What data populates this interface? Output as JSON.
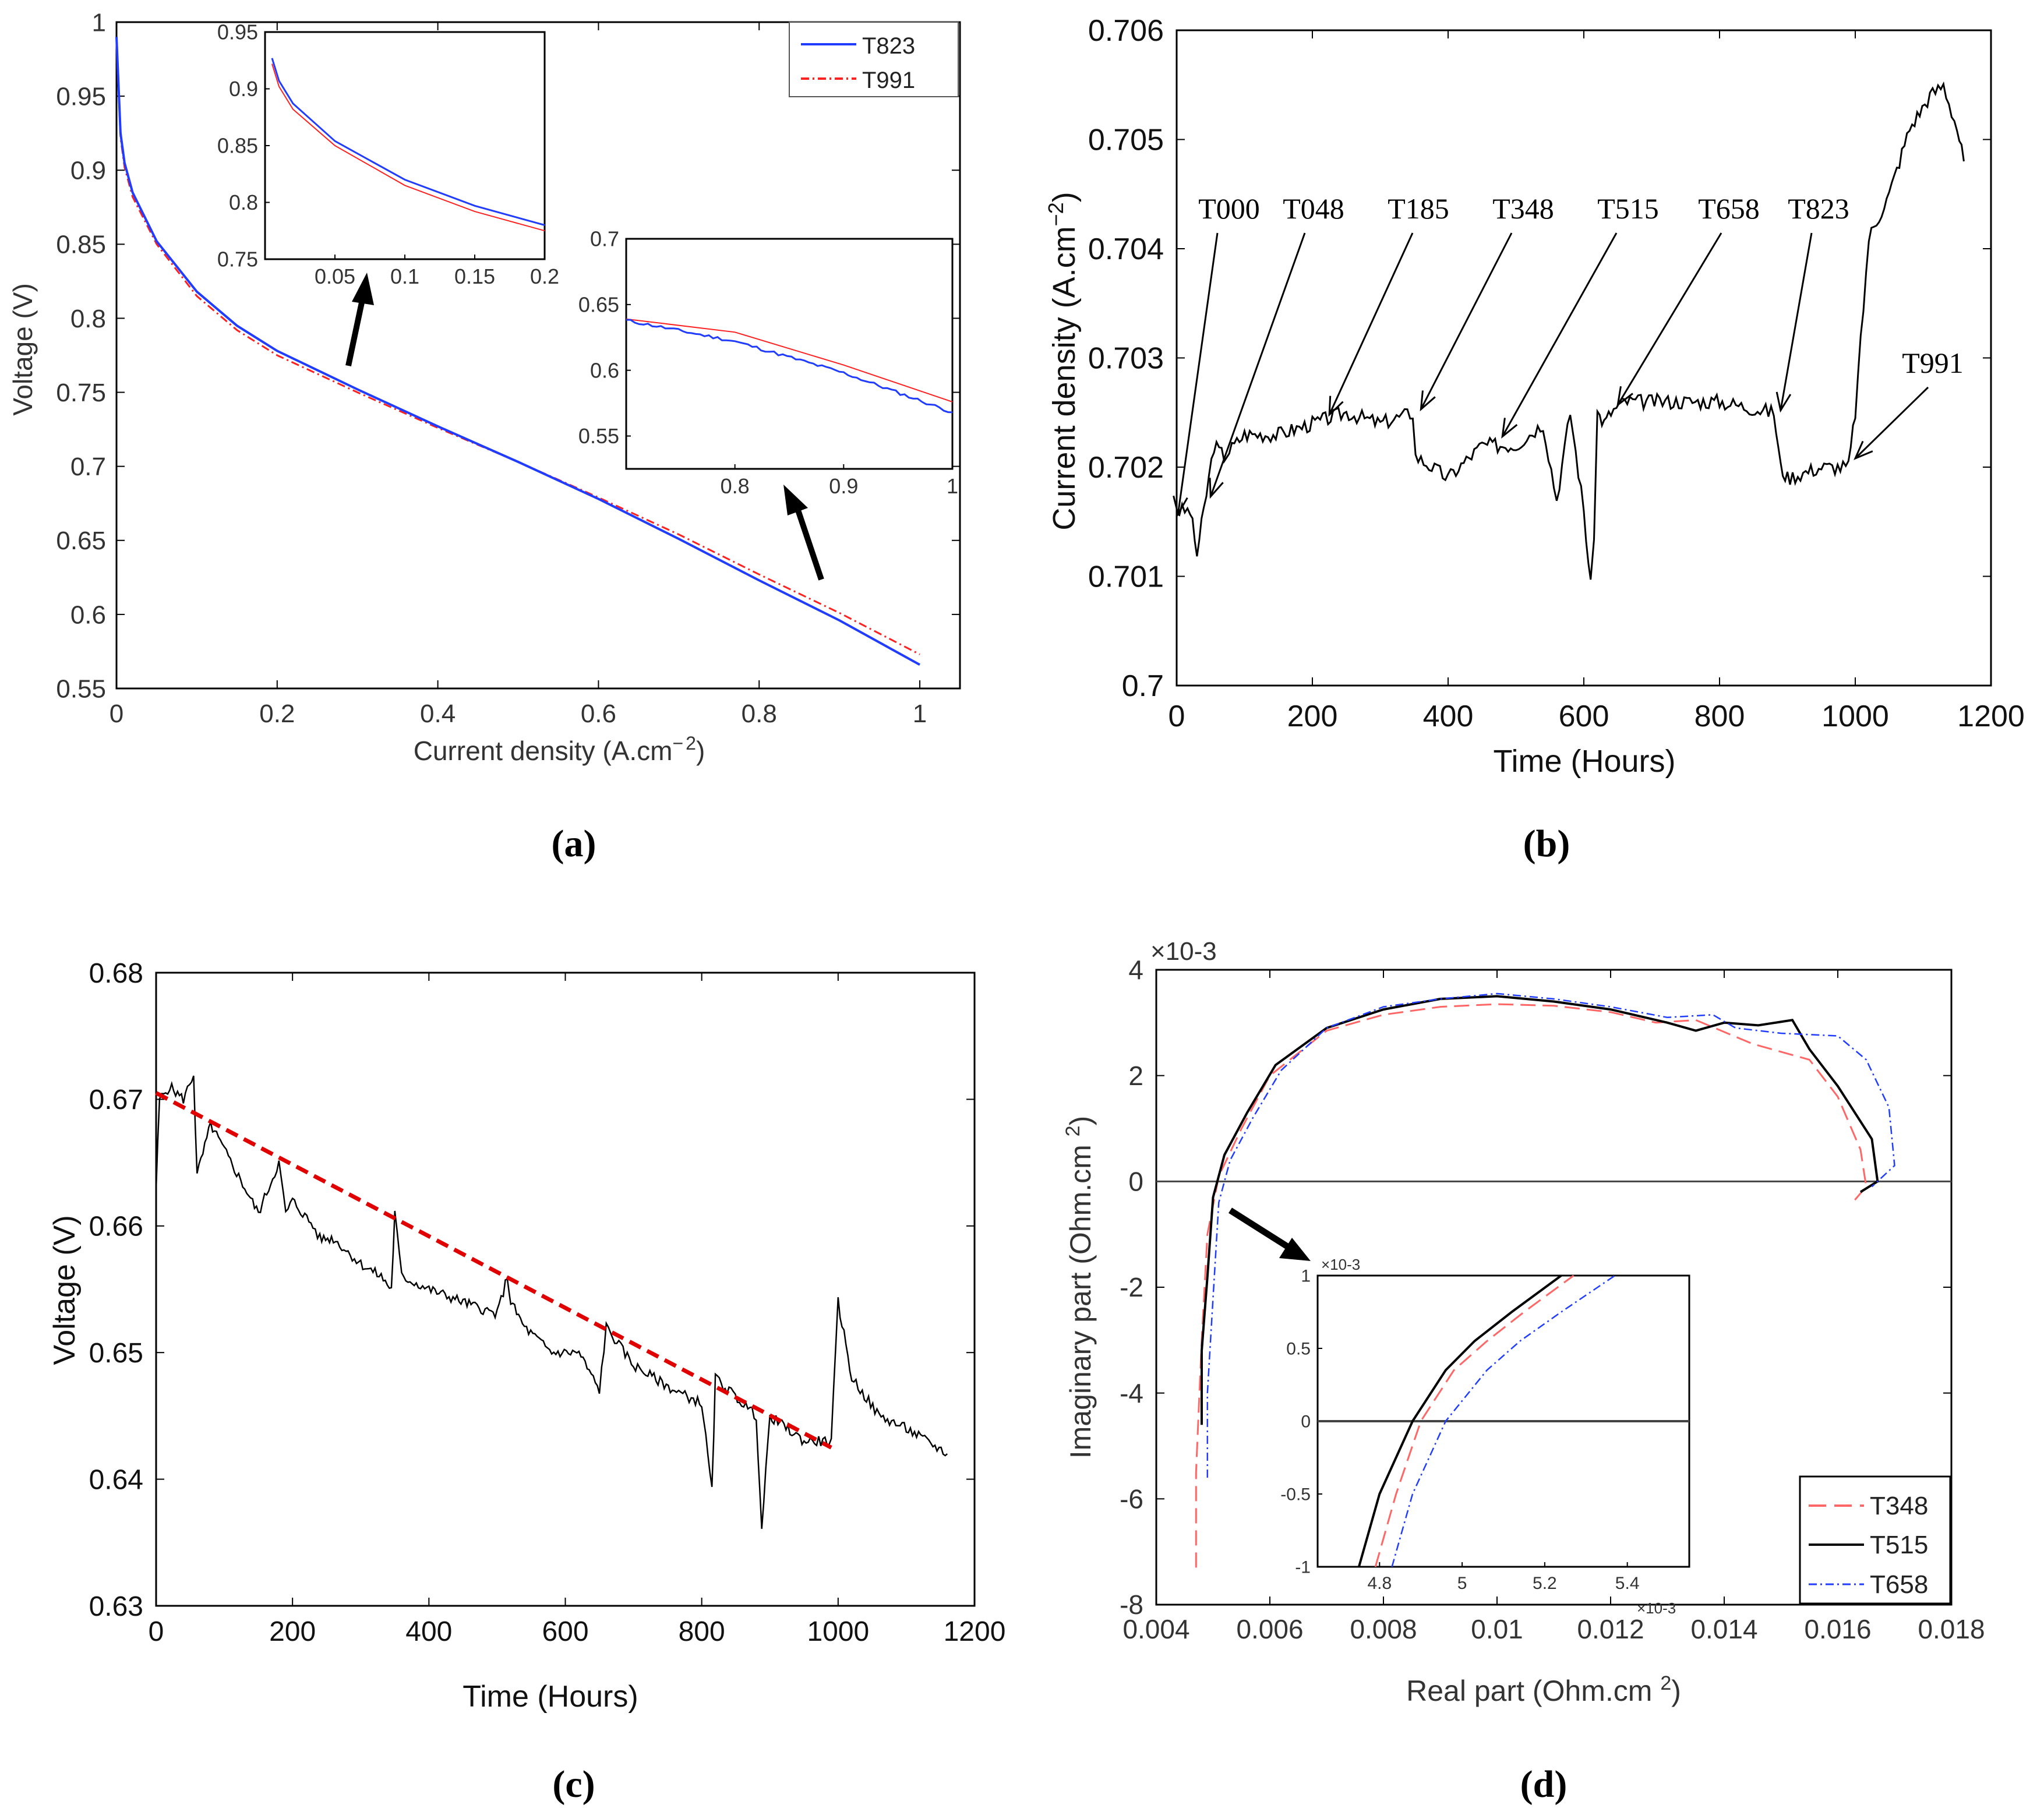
{
  "panels": {
    "a": {
      "caption": "(a)"
    },
    "b": {
      "caption": "(b)"
    },
    "c": {
      "caption": "(c)"
    },
    "d": {
      "caption": "(d)"
    }
  },
  "colors": {
    "blue": "#1f3cff",
    "red": "#ff2020",
    "black": "#000000",
    "fit_red": "#e00000",
    "pink": "#ff6666"
  },
  "chart_data": [
    {
      "id": "a",
      "type": "line",
      "title": "",
      "xlabel": "Current density (A.cm^-2)",
      "ylabel": "Voltage (V)",
      "xlim": [
        0,
        1.05
      ],
      "ylim": [
        0.55,
        1.0
      ],
      "xticks": [
        "0",
        "0.2",
        "0.4",
        "0.6",
        "0.8",
        "1"
      ],
      "yticks": [
        "0.55",
        "0.6",
        "0.65",
        "0.7",
        "0.75",
        "0.8",
        "0.85",
        "0.9",
        "0.95",
        "1"
      ],
      "legend": {
        "position": "top-right",
        "entries": [
          "T823",
          "T991"
        ]
      },
      "series": [
        {
          "name": "T823",
          "x": [
            0,
            0.005,
            0.01,
            0.02,
            0.05,
            0.1,
            0.15,
            0.2,
            0.3,
            0.4,
            0.5,
            0.6,
            0.7,
            0.8,
            0.9,
            1.0
          ],
          "values": [
            0.99,
            0.925,
            0.905,
            0.885,
            0.852,
            0.818,
            0.795,
            0.778,
            0.752,
            0.727,
            0.703,
            0.678,
            0.651,
            0.623,
            0.596,
            0.566
          ]
        },
        {
          "name": "T991",
          "x": [
            0,
            0.005,
            0.01,
            0.02,
            0.05,
            0.1,
            0.15,
            0.2,
            0.3,
            0.4,
            0.5,
            0.6,
            0.7,
            0.8,
            0.9,
            1.0
          ],
          "values": [
            0.985,
            0.922,
            0.902,
            0.882,
            0.85,
            0.815,
            0.792,
            0.775,
            0.75,
            0.726,
            0.703,
            0.679,
            0.654,
            0.627,
            0.601,
            0.573
          ]
        }
      ],
      "insets": [
        {
          "xlim": [
            0,
            0.2
          ],
          "ylim": [
            0.75,
            0.95
          ],
          "xticks": [
            "0.05",
            "0.1",
            "0.15",
            "0.2"
          ],
          "yticks": [
            "0.75",
            "0.8",
            "0.85",
            "0.9",
            "0.95"
          ]
        },
        {
          "xlim": [
            0.7,
            1.0
          ],
          "ylim": [
            0.525,
            0.7
          ],
          "xticks": [
            "0.8",
            "0.9",
            "1"
          ],
          "yticks": [
            "0.55",
            "0.6",
            "0.65",
            "0.7"
          ]
        }
      ]
    },
    {
      "id": "b",
      "type": "line",
      "xlabel": "Time (Hours)",
      "ylabel": "Current density (A.cm^-2)",
      "xlim": [
        0,
        1200
      ],
      "ylim": [
        0.7,
        0.706
      ],
      "xticks": [
        "0",
        "200",
        "400",
        "600",
        "800",
        "1000",
        "1200"
      ],
      "yticks": [
        "0.7",
        "0.701",
        "0.702",
        "0.703",
        "0.704",
        "0.705",
        "0.706"
      ],
      "annotations": [
        "T000",
        "T048",
        "T185",
        "T348",
        "T515",
        "T658",
        "T823",
        "T991"
      ],
      "series": [
        {
          "name": "current density",
          "x": [
            0,
            20,
            30,
            40,
            55,
            70,
            100,
            150,
            200,
            250,
            300,
            348,
            352,
            400,
            450,
            500,
            540,
            560,
            580,
            600,
            610,
            615,
            620,
            630,
            640,
            660,
            700,
            800,
            880,
            890,
            900,
            950,
            990,
            1000,
            1020,
            1050,
            1080,
            1110,
            1130,
            1150,
            1160
          ],
          "values": [
            0.7016,
            0.7016,
            0.7012,
            0.7016,
            0.7022,
            0.7021,
            0.7023,
            0.7023,
            0.7024,
            0.7025,
            0.7024,
            0.7025,
            0.7021,
            0.7019,
            0.7022,
            0.7022,
            0.7024,
            0.7017,
            0.7025,
            0.7016,
            0.7009,
            0.7014,
            0.7025,
            0.7024,
            0.7025,
            0.7026,
            0.7026,
            0.7026,
            0.7025,
            0.702,
            0.7019,
            0.702,
            0.702,
            0.7025,
            0.7041,
            0.7045,
            0.7051,
            0.7054,
            0.7055,
            0.7051,
            0.7048
          ]
        }
      ]
    },
    {
      "id": "c",
      "type": "line",
      "xlabel": "Time (Hours)",
      "ylabel": "Voltage (V)",
      "xlim": [
        0,
        1200
      ],
      "ylim": [
        0.63,
        0.68
      ],
      "xticks": [
        "0",
        "200",
        "400",
        "600",
        "800",
        "1000",
        "1200"
      ],
      "yticks": [
        "0.63",
        "0.64",
        "0.65",
        "0.66",
        "0.67",
        "0.68"
      ],
      "series": [
        {
          "name": "measured voltage",
          "x": [
            0,
            5,
            20,
            40,
            55,
            60,
            80,
            100,
            130,
            150,
            180,
            190,
            200,
            230,
            240,
            260,
            300,
            330,
            345,
            350,
            360,
            400,
            450,
            500,
            515,
            520,
            540,
            580,
            620,
            650,
            660,
            700,
            760,
            800,
            815,
            820,
            840,
            880,
            888,
            900,
            950,
            990,
            1000,
            1020,
            1060,
            1100,
            1160
          ],
          "values": [
            0.663,
            0.67,
            0.671,
            0.67,
            0.672,
            0.664,
            0.668,
            0.666,
            0.663,
            0.661,
            0.665,
            0.661,
            0.662,
            0.66,
            0.659,
            0.659,
            0.657,
            0.656,
            0.655,
            0.661,
            0.656,
            0.655,
            0.654,
            0.653,
            0.656,
            0.654,
            0.652,
            0.65,
            0.65,
            0.647,
            0.652,
            0.649,
            0.647,
            0.646,
            0.639,
            0.648,
            0.647,
            0.645,
            0.636,
            0.645,
            0.643,
            0.643,
            0.654,
            0.648,
            0.645,
            0.644,
            0.642
          ]
        },
        {
          "name": "linear fit",
          "x": [
            0,
            990
          ],
          "values": [
            0.6705,
            0.6425
          ]
        }
      ]
    },
    {
      "id": "d",
      "type": "line",
      "xlabel": "Real part (Ohm.cm^2)",
      "ylabel": "Imaginary part (Ohm.cm^2)",
      "exponent_label": "×10-3",
      "xlim": [
        0.004,
        0.018
      ],
      "ylim": [
        -8,
        4
      ],
      "xticks": [
        "0.004",
        "0.006",
        "0.008",
        "0.01",
        "0.012",
        "0.014",
        "0.016",
        "0.018"
      ],
      "yticks": [
        "-8",
        "-6",
        "-4",
        "-2",
        "0",
        "2",
        "4"
      ],
      "legend": {
        "position": "bottom-right",
        "entries": [
          "T348",
          "T515",
          "T658"
        ]
      },
      "series": [
        {
          "name": "T348",
          "x": [
            0.0047,
            0.0047,
            0.0048,
            0.0049,
            0.0051,
            0.0055,
            0.006,
            0.007,
            0.008,
            0.009,
            0.01,
            0.011,
            0.012,
            0.0128,
            0.0135,
            0.0145,
            0.0155,
            0.016,
            0.0164,
            0.0165,
            0.0163
          ],
          "values": [
            -7.3,
            -5.5,
            -3.0,
            -1.0,
            0.1,
            1.0,
            2.0,
            2.85,
            3.15,
            3.3,
            3.35,
            3.32,
            3.2,
            3.0,
            3.05,
            2.6,
            2.3,
            1.6,
            0.6,
            -0.1,
            -0.35
          ]
        },
        {
          "name": "T515",
          "x": [
            0.0048,
            0.0048,
            0.0049,
            0.005,
            0.0052,
            0.0056,
            0.0061,
            0.007,
            0.008,
            0.009,
            0.01,
            0.011,
            0.012,
            0.013,
            0.0135,
            0.014,
            0.0146,
            0.0152,
            0.0155,
            0.016,
            0.0166,
            0.0167,
            0.0164
          ],
          "values": [
            -4.6,
            -3.2,
            -1.8,
            -0.3,
            0.5,
            1.3,
            2.2,
            2.9,
            3.25,
            3.45,
            3.5,
            3.4,
            3.25,
            3.0,
            2.85,
            3.0,
            2.95,
            3.05,
            2.5,
            1.8,
            0.8,
            0.0,
            -0.2
          ]
        },
        {
          "name": "T658",
          "x": [
            0.0049,
            0.0049,
            0.005,
            0.0051,
            0.0053,
            0.0057,
            0.0062,
            0.007,
            0.008,
            0.009,
            0.01,
            0.011,
            0.012,
            0.013,
            0.0138,
            0.0142,
            0.015,
            0.016,
            0.0165,
            0.0169,
            0.017,
            0.0166
          ],
          "values": [
            -5.6,
            -4.0,
            -2.2,
            -0.4,
            0.4,
            1.2,
            2.1,
            2.9,
            3.3,
            3.45,
            3.55,
            3.45,
            3.3,
            3.1,
            3.15,
            2.9,
            2.8,
            2.75,
            2.3,
            1.4,
            0.3,
            -0.1
          ]
        }
      ],
      "inset": {
        "xlim": [
          4.65,
          5.55
        ],
        "ylim": [
          -1,
          1
        ],
        "exponent_label": "×10-3",
        "xticks": [
          "4.8",
          "5",
          "5.2",
          "5.4"
        ],
        "yticks": [
          "-1",
          "-0.5",
          "0",
          "0.5",
          "1"
        ],
        "series": [
          {
            "name": "T348",
            "x": [
              4.79,
              4.84,
              4.9,
              4.98,
              5.06,
              5.15,
              5.27
            ],
            "values": [
              -1.0,
              -0.5,
              0.0,
              0.35,
              0.55,
              0.75,
              1.0
            ]
          },
          {
            "name": "T515",
            "x": [
              4.75,
              4.8,
              4.88,
              4.96,
              5.03,
              5.12,
              5.24
            ],
            "values": [
              -1.0,
              -0.5,
              0.0,
              0.35,
              0.55,
              0.75,
              1.0
            ]
          },
          {
            "name": "T658",
            "x": [
              4.83,
              4.88,
              4.96,
              5.06,
              5.14,
              5.24,
              5.37
            ],
            "values": [
              -1.0,
              -0.5,
              0.0,
              0.35,
              0.55,
              0.75,
              1.0
            ]
          }
        ]
      }
    }
  ]
}
